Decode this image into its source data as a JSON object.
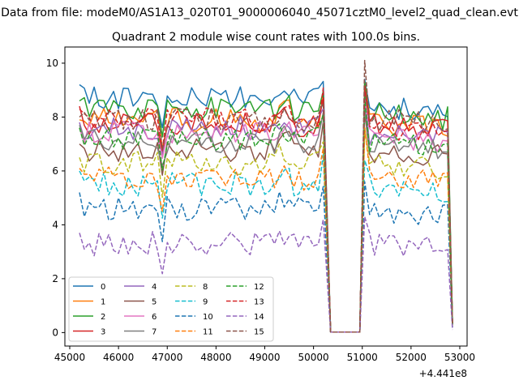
{
  "figure": {
    "suptitle": "Data from file: modeM0/AS1A13_020T01_9000006040_45071cztM0_level2_quad_clean.evt",
    "title": "Quadrant 2 module wise count rates with 100.0s bins.",
    "x_offset_label": "+4.441e8"
  },
  "chart_data": {
    "type": "line",
    "title": "Quadrant 2 module wise count rates with 100.0s bins.",
    "xlabel": "",
    "ylabel": "",
    "x_offset": "+4.441e8",
    "xlim": [
      44900,
      53150
    ],
    "ylim": [
      -0.5,
      10.6
    ],
    "xticks": [
      45000,
      46000,
      47000,
      48000,
      49000,
      50000,
      51000,
      52000,
      53000
    ],
    "xtick_labels": [
      "45000",
      "46000",
      "47000",
      "48000",
      "49000",
      "50000",
      "51000",
      "52000",
      "53000"
    ],
    "yticks": [
      0,
      2,
      4,
      6,
      8,
      10
    ],
    "ytick_labels": [
      "0",
      "2",
      "4",
      "6",
      "8",
      "10"
    ],
    "grid": false,
    "legend": {
      "placement": "lower-left",
      "columns": 4
    },
    "gap": [
      50350,
      50950
    ],
    "series": [
      {
        "name": "0",
        "color": "#1f77b4",
        "dash": "solid",
        "level": 8.7,
        "lvl_after": 8.4,
        "start": 9.2,
        "end": 0.3,
        "peak": 9.4
      },
      {
        "name": "1",
        "color": "#ff7f0e",
        "dash": "solid",
        "level": 7.9,
        "lvl_after": 7.8,
        "start": 7.9,
        "end": 0.3,
        "peak": 9.3
      },
      {
        "name": "2",
        "color": "#2ca02c",
        "dash": "solid",
        "level": 8.3,
        "lvl_after": 8.1,
        "start": 8.6,
        "end": 0.3,
        "peak": 9.3
      },
      {
        "name": "3",
        "color": "#d62728",
        "dash": "solid",
        "level": 7.7,
        "lvl_after": 7.7,
        "start": 8.4,
        "end": 0.3,
        "peak": 9.0
      },
      {
        "name": "4",
        "color": "#9467bd",
        "dash": "solid",
        "level": 7.6,
        "lvl_after": 7.4,
        "start": 7.8,
        "end": 0.3,
        "peak": 8.8
      },
      {
        "name": "5",
        "color": "#8c564b",
        "dash": "solid",
        "level": 6.8,
        "lvl_after": 6.7,
        "start": 7.0,
        "end": 0.3,
        "peak": 8.2
      },
      {
        "name": "6",
        "color": "#e377c2",
        "dash": "solid",
        "level": 7.4,
        "lvl_after": 7.3,
        "start": 7.6,
        "end": 0.3,
        "peak": 8.6
      },
      {
        "name": "7",
        "color": "#7f7f7f",
        "dash": "solid",
        "level": 7.1,
        "lvl_after": 7.0,
        "start": 7.7,
        "end": 0.3,
        "peak": 8.4
      },
      {
        "name": "8",
        "color": "#bcbd22",
        "dash": "dashed",
        "level": 6.3,
        "lvl_after": 6.2,
        "start": 6.5,
        "end": 0.25,
        "peak": 7.6
      },
      {
        "name": "9",
        "color": "#17becf",
        "dash": "dashed",
        "level": 5.5,
        "lvl_after": 5.4,
        "start": 6.0,
        "end": 0.25,
        "peak": 6.4
      },
      {
        "name": "10",
        "color": "#1f77b4",
        "dash": "dashed",
        "level": 4.6,
        "lvl_after": 4.5,
        "start": 5.2,
        "end": 0.2,
        "peak": 5.6
      },
      {
        "name": "11",
        "color": "#ff7f0e",
        "dash": "dashed",
        "level": 5.7,
        "lvl_after": 5.8,
        "start": 6.1,
        "end": 0.25,
        "peak": 7.6
      },
      {
        "name": "12",
        "color": "#2ca02c",
        "dash": "dashed",
        "level": 7.2,
        "lvl_after": 7.0,
        "start": 7.6,
        "end": 0.3,
        "peak": 8.8
      },
      {
        "name": "13",
        "color": "#d62728",
        "dash": "dashed",
        "level": 7.9,
        "lvl_after": 7.6,
        "start": 8.3,
        "end": 0.3,
        "peak": 9.2
      },
      {
        "name": "14",
        "color": "#9467bd",
        "dash": "dashed",
        "level": 3.3,
        "lvl_after": 3.3,
        "start": 3.7,
        "end": 0.1,
        "peak": 4.3
      },
      {
        "name": "15",
        "color": "#8c564b",
        "dash": "dashed",
        "level": 7.9,
        "lvl_after": 7.9,
        "start": 8.0,
        "end": 0.3,
        "peak": 10.1
      }
    ]
  }
}
